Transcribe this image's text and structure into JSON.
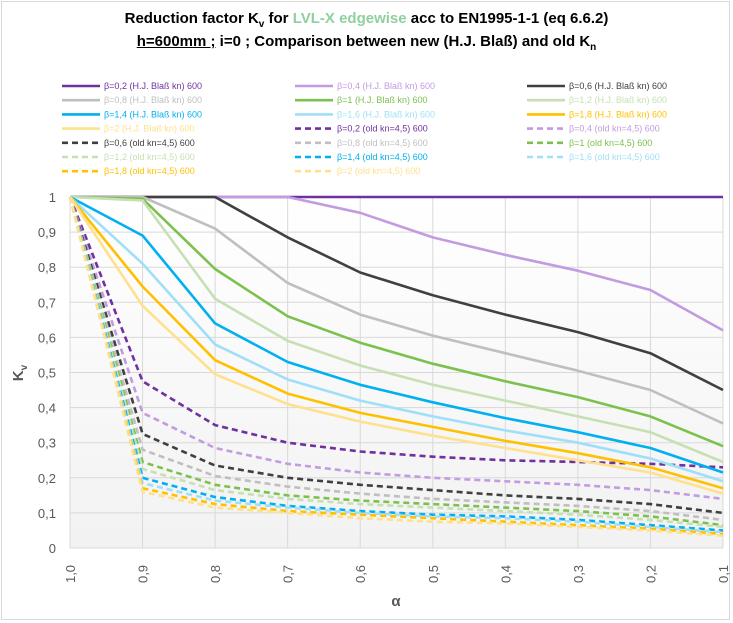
{
  "title": {
    "line1_prefix": "Reduction factor K",
    "line1_sub": "v",
    "line1_mid": " for ",
    "line1_highlight": "LVL-X edgewise",
    "line1_suffix": " acc to EN1995-1-1 (eq 6.6.2)",
    "line2_underlined": "h=600mm ;",
    "line2_rest": " i=0 ; Comparison between new (H.J. Blaß) and old K",
    "line2_sub": "n"
  },
  "colors": {
    "highlight": "#8fd19e",
    "grid": "#d9d9d9",
    "axis_text": "#595959"
  },
  "chart_data": {
    "type": "line",
    "xlabel": "α",
    "ylabel": "Kv",
    "x": [
      1.0,
      0.9,
      0.8,
      0.7,
      0.6,
      0.5,
      0.4,
      0.3,
      0.2,
      0.1
    ],
    "x_tick_labels": [
      "1,0",
      "0,9",
      "0,8",
      "0,7",
      "0,6",
      "0,5",
      "0,4",
      "0,3",
      "0,2",
      "0,1"
    ],
    "ylim": [
      0,
      1
    ],
    "y_tick_labels": [
      "0",
      "0,1",
      "0,2",
      "0,3",
      "0,4",
      "0,5",
      "0,6",
      "0,7",
      "0,8",
      "0,9",
      "1"
    ],
    "x_reversed": true,
    "grid": true,
    "legend_position": "top",
    "series": [
      {
        "name": "β=0,2 (H.J. Blaß kn) 600",
        "color": "#7030a0",
        "dash": false,
        "values": [
          1,
          1,
          1,
          1,
          1,
          1,
          1,
          1,
          1,
          1
        ]
      },
      {
        "name": "β=0,4 (H.J. Blaß kn) 600",
        "color": "#c39be0",
        "dash": false,
        "values": [
          1,
          1,
          1,
          1,
          0.955,
          0.885,
          0.835,
          0.79,
          0.735,
          0.62
        ]
      },
      {
        "name": "β=0,6 (H.J. Blaß kn) 600",
        "color": "#404040",
        "dash": false,
        "values": [
          1,
          1,
          1,
          0.885,
          0.785,
          0.72,
          0.665,
          0.615,
          0.555,
          0.45
        ]
      },
      {
        "name": "β=0,8 (H.J. Blaß kn) 600",
        "color": "#bfbfbf",
        "dash": false,
        "values": [
          1,
          1,
          0.91,
          0.755,
          0.665,
          0.605,
          0.555,
          0.505,
          0.45,
          0.355
        ]
      },
      {
        "name": "β=1 (H.J. Blaß kn) 600",
        "color": "#7cc14e",
        "dash": false,
        "values": [
          1,
          0.995,
          0.795,
          0.66,
          0.585,
          0.525,
          0.475,
          0.43,
          0.375,
          0.29
        ]
      },
      {
        "name": "β=1,2 (H.J. Blaß kn) 600",
        "color": "#c6e0b4",
        "dash": false,
        "values": [
          1,
          0.99,
          0.71,
          0.59,
          0.52,
          0.465,
          0.42,
          0.375,
          0.33,
          0.245
        ]
      },
      {
        "name": "β=1,4 (H.J. Blaß kn) 600",
        "color": "#00b0f0",
        "dash": false,
        "values": [
          1,
          0.89,
          0.64,
          0.53,
          0.465,
          0.415,
          0.37,
          0.33,
          0.285,
          0.215
        ]
      },
      {
        "name": "β=1,6 (H.J. Blaß kn) 600",
        "color": "#9fdff7",
        "dash": false,
        "values": [
          1,
          0.81,
          0.58,
          0.48,
          0.42,
          0.375,
          0.335,
          0.3,
          0.255,
          0.19
        ]
      },
      {
        "name": "β=1,8 (H.J. Blaß kn) 600",
        "color": "#ffc000",
        "dash": false,
        "values": [
          1,
          0.745,
          0.535,
          0.44,
          0.385,
          0.345,
          0.305,
          0.27,
          0.23,
          0.17
        ]
      },
      {
        "name": "β=2 (H.J. Blaß kn) 600",
        "color": "#ffe08c",
        "dash": false,
        "values": [
          1,
          0.69,
          0.495,
          0.41,
          0.36,
          0.32,
          0.285,
          0.25,
          0.215,
          0.155
        ]
      },
      {
        "name": "β=0,2 (old kn=4,5) 600",
        "color": "#7030a0",
        "dash": true,
        "values": [
          1,
          0.475,
          0.35,
          0.3,
          0.275,
          0.26,
          0.25,
          0.245,
          0.24,
          0.23
        ]
      },
      {
        "name": "β=0,4 (old kn=4,5) 600",
        "color": "#c39be0",
        "dash": true,
        "values": [
          1,
          0.385,
          0.285,
          0.24,
          0.215,
          0.2,
          0.19,
          0.18,
          0.165,
          0.14
        ]
      },
      {
        "name": "β=0,6 (old kn=4,5) 600",
        "color": "#404040",
        "dash": true,
        "values": [
          1,
          0.325,
          0.235,
          0.2,
          0.18,
          0.165,
          0.15,
          0.14,
          0.125,
          0.1
        ]
      },
      {
        "name": "β=0,8 (old kn=4,5) 600",
        "color": "#bfbfbf",
        "dash": true,
        "values": [
          1,
          0.28,
          0.205,
          0.175,
          0.155,
          0.14,
          0.13,
          0.12,
          0.105,
          0.08
        ]
      },
      {
        "name": "β=1 (old kn=4,5) 600",
        "color": "#7cc14e",
        "dash": true,
        "values": [
          1,
          0.245,
          0.18,
          0.15,
          0.135,
          0.125,
          0.115,
          0.105,
          0.09,
          0.065
        ]
      },
      {
        "name": "β=1,2 (old kn=4,5) 600",
        "color": "#c6e0b4",
        "dash": true,
        "values": [
          1,
          0.225,
          0.165,
          0.14,
          0.125,
          0.115,
          0.105,
          0.095,
          0.08,
          0.06
        ]
      },
      {
        "name": "β=1,4 (old kn=4,5) 600",
        "color": "#00b0f0",
        "dash": true,
        "values": [
          1,
          0.2,
          0.145,
          0.12,
          0.105,
          0.095,
          0.09,
          0.08,
          0.065,
          0.05
        ]
      },
      {
        "name": "β=1,6 (old kn=4,5) 600",
        "color": "#9fdff7",
        "dash": true,
        "values": [
          1,
          0.185,
          0.135,
          0.115,
          0.1,
          0.09,
          0.085,
          0.075,
          0.06,
          0.045
        ]
      },
      {
        "name": "β=1,8 (old kn=4,5) 600",
        "color": "#ffc000",
        "dash": true,
        "values": [
          1,
          0.17,
          0.125,
          0.105,
          0.095,
          0.085,
          0.075,
          0.065,
          0.055,
          0.04
        ]
      },
      {
        "name": "β=2 (old kn=4,5) 600",
        "color": "#ffe08c",
        "dash": true,
        "values": [
          1,
          0.16,
          0.115,
          0.1,
          0.085,
          0.075,
          0.07,
          0.06,
          0.05,
          0.035
        ]
      }
    ]
  }
}
